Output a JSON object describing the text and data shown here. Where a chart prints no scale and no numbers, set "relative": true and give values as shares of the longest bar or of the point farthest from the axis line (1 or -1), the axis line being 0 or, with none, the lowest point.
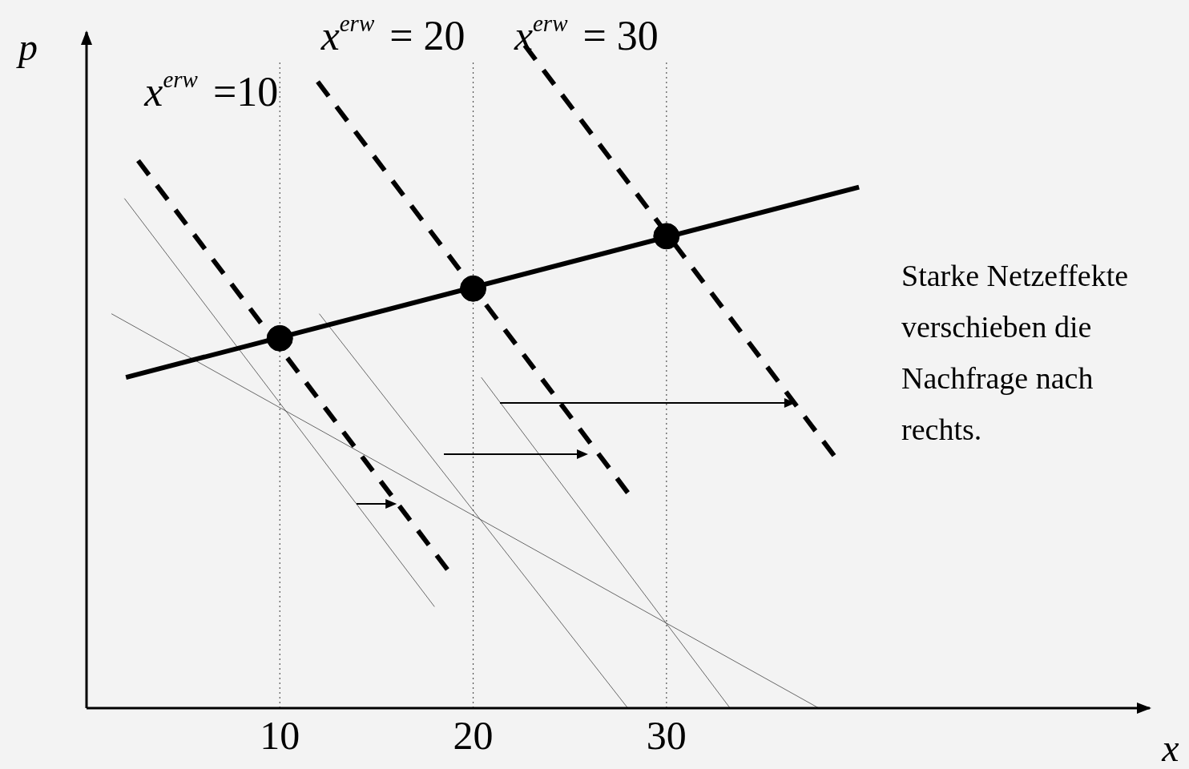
{
  "chart_data": {
    "type": "line",
    "relative": true,
    "xlabel": "x",
    "ylabel": "p",
    "xlim": [
      0,
      55
    ],
    "xticks": [
      10,
      20,
      30
    ],
    "legend": false,
    "grid": false,
    "line_style": "solid",
    "marker": "none",
    "series": [
      {
        "color": "#000000",
        "x": [
          2.04,
          39.96
        ],
        "values": [
          0.499,
          0.786
        ]
      },
      {
        "color": "#000000",
        "line_style": "dashed",
        "x": [
          2.67,
          18.67
        ],
        "values": [
          0.826,
          0.209
        ]
      },
      {
        "color": "#000000",
        "line_style": "dashed",
        "x": [
          11.96,
          28.0
        ],
        "values": [
          0.945,
          0.325
        ]
      },
      {
        "color": "#000000",
        "line_style": "dashed",
        "x": [
          22.67,
          38.67
        ],
        "values": [
          1.0,
          0.381
        ]
      },
      {
        "color": "#444444",
        "x": [
          1.96,
          18.0
        ],
        "values": [
          0.769,
          0.153
        ]
      },
      {
        "color": "#444444",
        "x": [
          12.04,
          28.0
        ],
        "values": [
          0.595,
          0
        ]
      },
      {
        "color": "#444444",
        "x": [
          20.42,
          33.29
        ],
        "values": [
          0.499,
          0
        ]
      },
      {
        "color": "#444444",
        "x": [
          1.29,
          37.88
        ],
        "values": [
          0.595,
          0
        ]
      },
      {
        "type": "scatter",
        "marker": "circle",
        "color": "#000000",
        "x": [
          10,
          20,
          30
        ],
        "values": [
          0.558,
          0.633,
          0.712
        ]
      }
    ],
    "ref_lines": [
      {
        "axis": "x",
        "value": 10,
        "label": "x$^{erw}$ =10",
        "line_style": "dotted",
        "color": "#555555"
      },
      {
        "axis": "x",
        "value": 20,
        "label": "x$^{erw}$ = 20",
        "line_style": "dotted",
        "color": "#555555"
      },
      {
        "axis": "x",
        "value": 30,
        "label": "x$^{erw}$ = 30",
        "line_style": "dotted",
        "color": "#555555"
      }
    ],
    "annotations": [
      "Starke Netzeffekte verschieben die Nachfrage nach rechts."
    ]
  }
}
